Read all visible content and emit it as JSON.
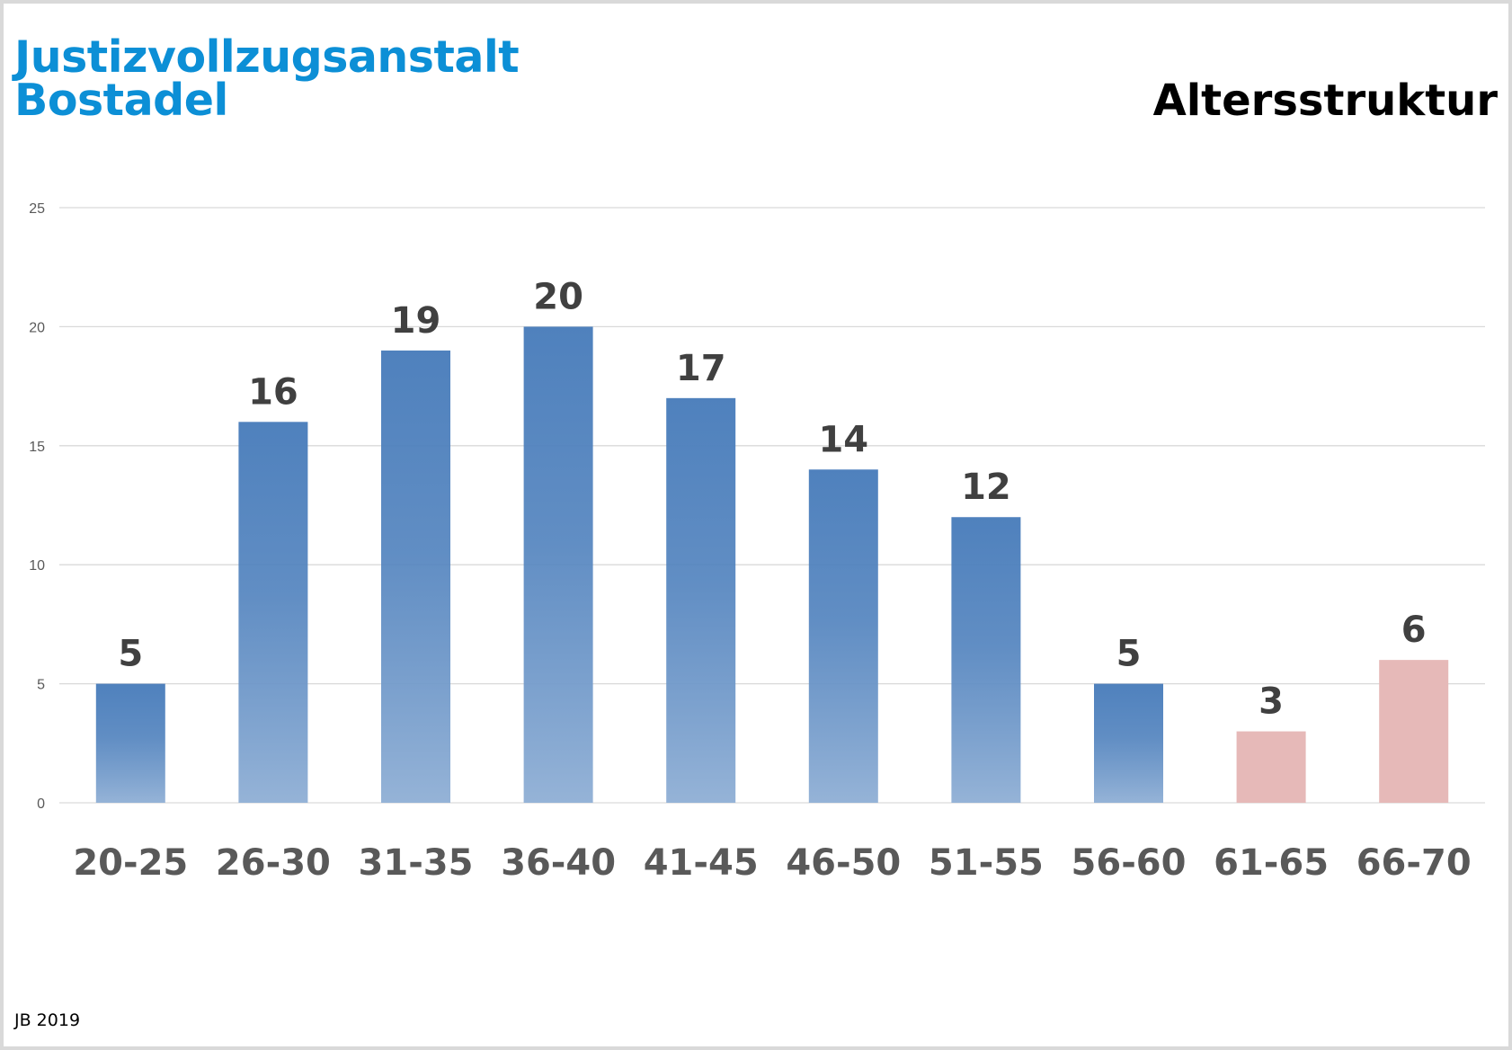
{
  "header": {
    "org_line1": "Justizvollzugsanstalt",
    "org_line2": "Bostadel",
    "chart_title": "Altersstruktur"
  },
  "footer": {
    "text": "JB 2019"
  },
  "colors": {
    "org_title": "#0c8fd6",
    "bar_blue_top": "#4f81bd",
    "bar_blue_bottom": "#95b3d7",
    "bar_pink": "#e6b9b8",
    "gridline": "#d9d9d9"
  },
  "chart_data": {
    "type": "bar",
    "title": "Altersstruktur",
    "xlabel": "",
    "ylabel": "",
    "categories": [
      "20-25",
      "26-30",
      "31-35",
      "36-40",
      "41-45",
      "46-50",
      "51-55",
      "56-60",
      "61-65",
      "66-70"
    ],
    "values": [
      5,
      16,
      19,
      20,
      17,
      14,
      12,
      5,
      3,
      6
    ],
    "bar_styles": [
      "blue-gradient",
      "blue-gradient",
      "blue-gradient",
      "blue-gradient",
      "blue-gradient",
      "blue-gradient",
      "blue-gradient",
      "blue-gradient",
      "pink",
      "pink"
    ],
    "ylim": [
      0,
      25
    ],
    "yticks": [
      0,
      5,
      10,
      15,
      20,
      25
    ],
    "grid": true,
    "data_labels": true,
    "legend": "none"
  }
}
